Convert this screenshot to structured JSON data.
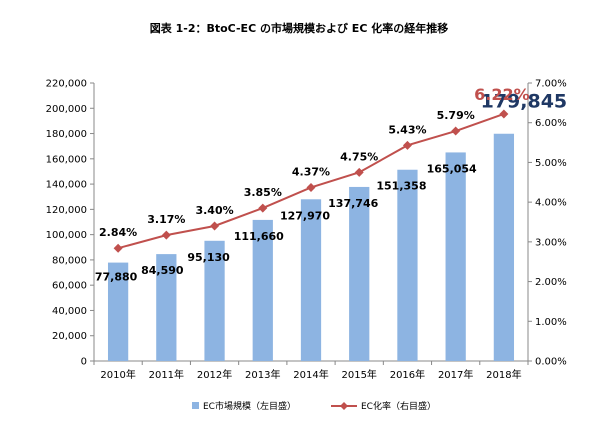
{
  "chart_data": {
    "title": "図表 1-2：BtoC-EC の市場規模および EC 化率の経年推移",
    "categories": [
      "2010年",
      "2011年",
      "2012年",
      "2013年",
      "2014年",
      "2015年",
      "2016年",
      "2017年",
      "2018年"
    ],
    "series": [
      {
        "name": "EC市場規模（左目盛）",
        "type": "bar",
        "axis": "left",
        "values": [
          77880,
          84590,
          95130,
          111660,
          127970,
          137746,
          151358,
          165054,
          179845
        ],
        "labels": [
          "77,880",
          "84,590",
          "95,130",
          "111,660",
          "127,970",
          "137,746",
          "151,358",
          "165,054",
          "179,845"
        ],
        "color": "#8DB4E2"
      },
      {
        "name": "EC化率（右目盛）",
        "type": "line",
        "axis": "right",
        "values": [
          2.84,
          3.17,
          3.4,
          3.85,
          4.37,
          4.75,
          5.43,
          5.79,
          6.22
        ],
        "labels": [
          "2.84%",
          "3.17%",
          "3.40%",
          "3.85%",
          "4.37%",
          "4.75%",
          "5.43%",
          "5.79%",
          "6.22%"
        ],
        "color": "#C0504D"
      }
    ],
    "left_axis": {
      "ylim": [
        0,
        220000
      ],
      "ticks": [
        0,
        20000,
        40000,
        60000,
        80000,
        100000,
        120000,
        140000,
        160000,
        180000,
        200000,
        220000
      ],
      "tick_labels": [
        "0",
        "20,000",
        "40,000",
        "60,000",
        "80,000",
        "100,000",
        "120,000",
        "140,000",
        "160,000",
        "180,000",
        "200,000",
        "220,000"
      ]
    },
    "right_axis": {
      "ylim": [
        0,
        7
      ],
      "ticks": [
        0,
        1,
        2,
        3,
        4,
        5,
        6,
        7
      ],
      "tick_labels": [
        "0.00%",
        "1.00%",
        "2.00%",
        "3.00%",
        "4.00%",
        "5.00%",
        "6.00%",
        "7.00%"
      ]
    },
    "legend_position": "bottom",
    "grid": false,
    "colors": {
      "bar": "#8DB4E2",
      "line": "#C0504D",
      "highlight_bar_label": "#1F3864",
      "highlight_line_label": "#C0504D",
      "axis": "#888888"
    }
  }
}
